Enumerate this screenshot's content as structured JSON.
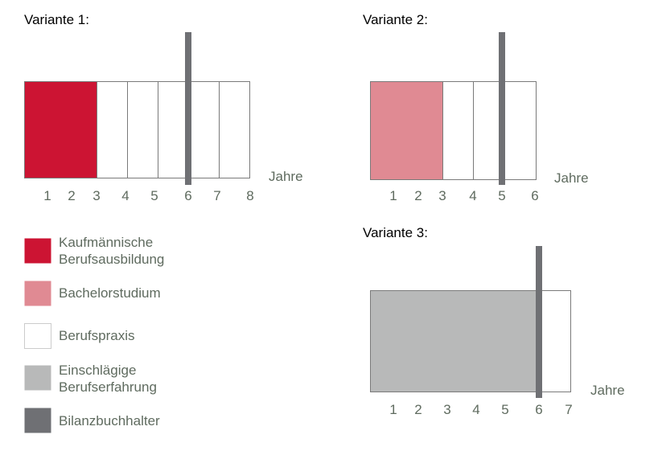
{
  "colors": {
    "kaufmaennisch": "#cc1433",
    "bachelor": "#e08a93",
    "praxis": "#ffffff",
    "erfahrung": "#b8b9b9",
    "bilanz": "#6f7074",
    "outline": "#7a7a7a",
    "label": "#5f6b5f"
  },
  "variants": [
    {
      "title": "Variante 1:",
      "unit": "Jahre",
      "ticks": [
        "1",
        "2",
        "3",
        "4",
        "5",
        "6",
        "7",
        "8"
      ],
      "segments": [
        {
          "type": "kaufmaennisch",
          "years": 3
        },
        {
          "type": "praxis",
          "years": 1
        },
        {
          "type": "praxis",
          "years": 1
        },
        {
          "type": "praxis",
          "years": 1
        },
        {
          "type": "praxis",
          "years": 1
        },
        {
          "type": "praxis",
          "years": 1
        }
      ],
      "marker_year": 6
    },
    {
      "title": "Variante 2:",
      "unit": "Jahre",
      "ticks": [
        "1",
        "2",
        "3",
        "4",
        "5",
        "6"
      ],
      "segments": [
        {
          "type": "bachelor",
          "years": 3
        },
        {
          "type": "praxis",
          "years": 1
        },
        {
          "type": "praxis",
          "years": 1
        },
        {
          "type": "praxis",
          "years": 1
        }
      ],
      "marker_year": 5
    },
    {
      "title": "Variante 3:",
      "unit": "Jahre",
      "ticks": [
        "1",
        "2",
        "3",
        "4",
        "5",
        "6",
        "7"
      ],
      "segments": [
        {
          "type": "erfahrung",
          "years": 6
        },
        {
          "type": "praxis",
          "years": 1
        }
      ],
      "marker_year": 6
    }
  ],
  "legend": [
    {
      "type": "kaufmaennisch",
      "lines": [
        "Kaufmännische",
        "Berufsausbildung"
      ]
    },
    {
      "type": "bachelor",
      "lines": [
        "Bachelorstudium"
      ]
    },
    {
      "type": "praxis",
      "lines": [
        "Berufspraxis"
      ]
    },
    {
      "type": "erfahrung",
      "lines": [
        "Einschlägige",
        "Berufserfahrung"
      ]
    },
    {
      "type": "bilanz",
      "lines": [
        "Bilanzbuchhalter"
      ]
    }
  ]
}
